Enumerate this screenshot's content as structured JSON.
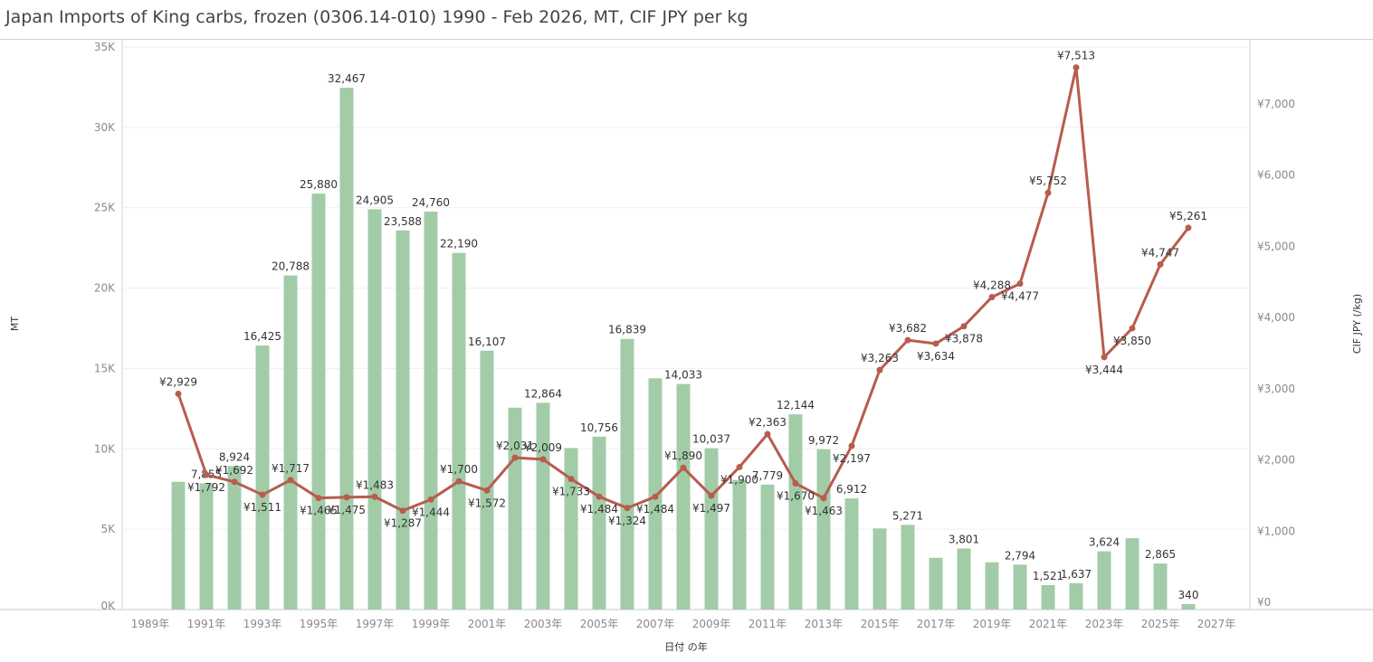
{
  "chart_data": {
    "type": "bar+line",
    "title": "Japan Imports of King carbs, frozen (0306.14-010) 1990 - Feb 2026, MT, CIF JPY per kg",
    "xlabel": "日付 の年",
    "ylabel": "MT",
    "y2label": "CIF JPY (/kg)",
    "x": [
      1990,
      1991,
      1992,
      1993,
      1994,
      1995,
      1996,
      1997,
      1998,
      1999,
      2000,
      2001,
      2002,
      2003,
      2004,
      2005,
      2006,
      2007,
      2008,
      2009,
      2010,
      2011,
      2012,
      2013,
      2014,
      2015,
      2016,
      2017,
      2018,
      2019,
      2020,
      2021,
      2022,
      2023,
      2024,
      2025,
      2026
    ],
    "x_ticks": [
      "1989年",
      "1991年",
      "1993年",
      "1995年",
      "1997年",
      "1999年",
      "2001年",
      "2003年",
      "2005年",
      "2007年",
      "2009年",
      "2011年",
      "2013年",
      "2015年",
      "2017年",
      "2019年",
      "2021年",
      "2023年",
      "2025年",
      "2027年"
    ],
    "y_ticks": [
      "0K",
      "5K",
      "10K",
      "15K",
      "20K",
      "25K",
      "30K",
      "35K"
    ],
    "y2_ticks": [
      "¥0",
      "¥1,000",
      "¥2,000",
      "¥3,000",
      "¥4,000",
      "¥5,000",
      "¥6,000",
      "¥7,000"
    ],
    "ylim": [
      0,
      35000
    ],
    "y2lim": [
      0,
      7000
    ],
    "series": [
      {
        "name": "MT",
        "type": "bar",
        "color": "#a2cca8",
        "values": [
          7950,
          7855,
          8924,
          16425,
          20788,
          25880,
          32467,
          24905,
          23588,
          24760,
          22190,
          16107,
          12560,
          12864,
          10050,
          10756,
          16839,
          14390,
          14033,
          10037,
          8060,
          7779,
          12144,
          9972,
          6912,
          5050,
          5271,
          3220,
          3801,
          2940,
          2794,
          1521,
          1637,
          3624,
          4440,
          2865,
          340
        ],
        "labels": [
          "",
          "7,855",
          "8,924",
          "16,425",
          "20,788",
          "25,880",
          "32,467",
          "24,905",
          "23,588",
          "24,760",
          "22,190",
          "16,107",
          "",
          "12,864",
          "",
          "10,756",
          "16,839",
          "",
          "14,033",
          "10,037",
          "",
          "7,779",
          "12,144",
          "9,972",
          "6,912",
          "",
          "5,271",
          "",
          "3,801",
          "",
          "2,794",
          "1,521",
          "1,637",
          "3,624",
          "",
          "2,865",
          "340"
        ]
      },
      {
        "name": "CIF JPY per kg",
        "type": "line",
        "color": "#b85c4e",
        "values": [
          2929,
          1792,
          1692,
          1511,
          1717,
          1465,
          1475,
          1483,
          1287,
          1444,
          1700,
          1572,
          2031,
          2009,
          1733,
          1484,
          1324,
          1484,
          1890,
          1497,
          1900,
          2363,
          1670,
          1463,
          2197,
          3263,
          3682,
          3634,
          3878,
          4288,
          4477,
          5752,
          7513,
          3444,
          3850,
          4747,
          5261
        ],
        "labels": [
          "¥2,929",
          "¥1,792",
          "¥1,692",
          "¥1,511",
          "¥1,717",
          "¥1,465",
          "¥1,475",
          "¥1,483",
          "¥1,287",
          "¥1,444",
          "¥1,700",
          "¥1,572",
          "¥2,031",
          "¥2,009",
          "¥1,733",
          "¥1,484",
          "¥1,324",
          "¥1,484",
          "¥1,890",
          "¥1,497",
          "¥1,900",
          "¥2,363",
          "¥1,670",
          "¥1,463",
          "¥2,197",
          "¥3,263",
          "¥3,682",
          "¥3,634",
          "¥3,878",
          "¥4,288",
          "¥4,477",
          "¥5,752",
          "¥7,513",
          "¥3,444",
          "¥3,850",
          "¥4,747",
          "¥5,261"
        ],
        "label_pos": [
          "a",
          "b",
          "a",
          "b",
          "a",
          "b",
          "b",
          "a",
          "b",
          "b",
          "a",
          "b",
          "a",
          "a",
          "b",
          "b",
          "b",
          "b",
          "a",
          "b",
          "b",
          "a",
          "b",
          "b",
          "b",
          "a",
          "a",
          "b",
          "b",
          "a",
          "b",
          "a",
          "a",
          "b",
          "b",
          "a",
          "a"
        ]
      }
    ],
    "grid": true,
    "legend": "none"
  }
}
